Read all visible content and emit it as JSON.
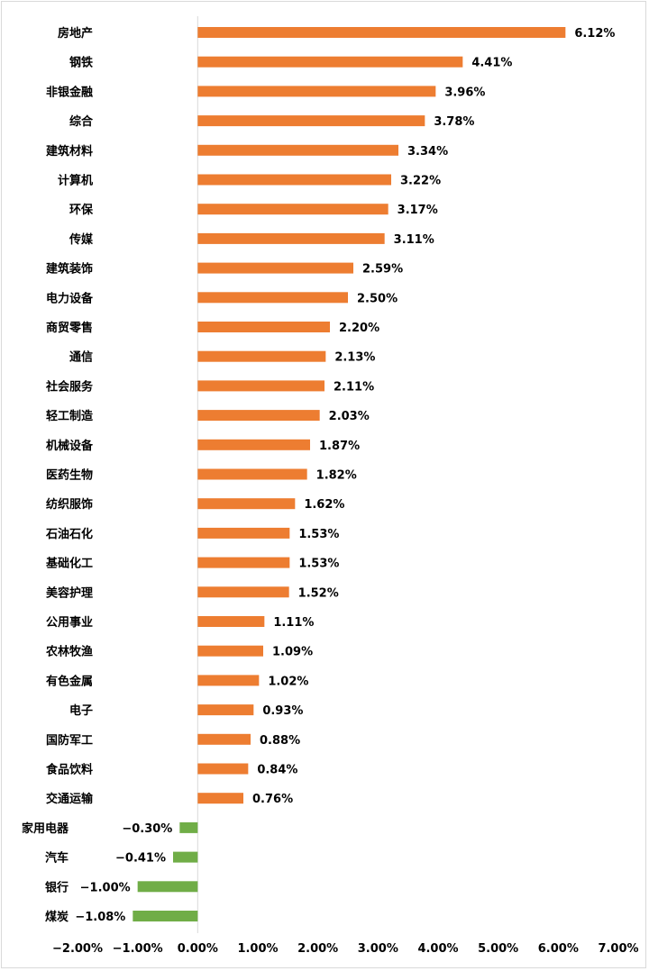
{
  "chart_data": {
    "type": "bar",
    "orientation": "horizontal",
    "categories": [
      "房地产",
      "钢铁",
      "非银金融",
      "综合",
      "建筑材料",
      "计算机",
      "环保",
      "传媒",
      "建筑装饰",
      "电力设备",
      "商贸零售",
      "通信",
      "社会服务",
      "轻工制造",
      "机械设备",
      "医药生物",
      "纺织服饰",
      "石油石化",
      "基础化工",
      "美容护理",
      "公用事业",
      "农林牧渔",
      "有色金属",
      "电子",
      "国防军工",
      "食品饮料",
      "交通运输",
      "家用电器",
      "汽车",
      "银行",
      "煤炭"
    ],
    "values": [
      6.12,
      4.41,
      3.96,
      3.78,
      3.34,
      3.22,
      3.17,
      3.11,
      2.59,
      2.5,
      2.2,
      2.13,
      2.11,
      2.03,
      1.87,
      1.82,
      1.62,
      1.53,
      1.53,
      1.52,
      1.11,
      1.09,
      1.02,
      0.93,
      0.88,
      0.84,
      0.76,
      -0.3,
      -0.41,
      -1.0,
      -1.08
    ],
    "value_labels": [
      "6.12%",
      "4.41%",
      "3.96%",
      "3.78%",
      "3.34%",
      "3.22%",
      "3.17%",
      "3.11%",
      "2.59%",
      "2.50%",
      "2.20%",
      "2.13%",
      "2.11%",
      "2.03%",
      "1.87%",
      "1.82%",
      "1.62%",
      "1.53%",
      "1.53%",
      "1.52%",
      "1.11%",
      "1.09%",
      "1.02%",
      "0.93%",
      "0.88%",
      "0.84%",
      "0.76%",
      "−0.30%",
      "−0.41%",
      "−1.00%",
      "−1.08%"
    ],
    "xlim": [
      -2.0,
      7.0
    ],
    "xticks": [
      -2,
      -1,
      0,
      1,
      2,
      3,
      4,
      5,
      6,
      7
    ],
    "xtick_labels": [
      "−2.00%",
      "−1.00%",
      "0.00%",
      "1.00%",
      "2.00%",
      "3.00%",
      "4.00%",
      "5.00%",
      "6.00%",
      "7.00%"
    ],
    "grid": false,
    "colors": {
      "positive": "#ed7d31",
      "negative": "#70ad47",
      "axis": "#d9d9d9"
    }
  }
}
